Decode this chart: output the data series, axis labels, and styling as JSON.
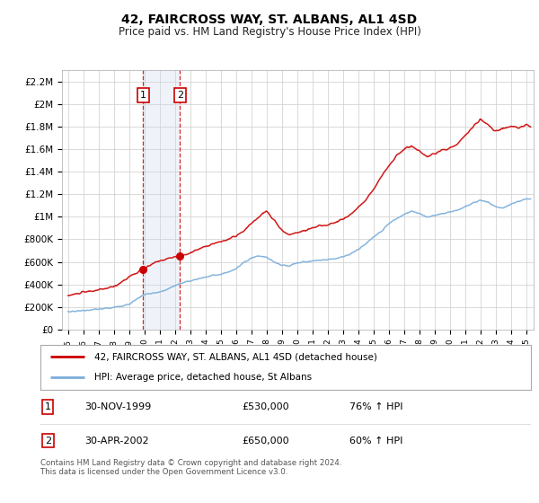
{
  "title": "42, FAIRCROSS WAY, ST. ALBANS, AL1 4SD",
  "subtitle": "Price paid vs. HM Land Registry's House Price Index (HPI)",
  "legend_line1": "42, FAIRCROSS WAY, ST. ALBANS, AL1 4SD (detached house)",
  "legend_line2": "HPI: Average price, detached house, St Albans",
  "red_color": "#cc0000",
  "blue_color": "#7aadda",
  "transaction1_date": 1999.917,
  "transaction1_price": 530000,
  "transaction2_date": 2002.33,
  "transaction2_price": 650000,
  "ylim": [
    0,
    2300000
  ],
  "xlim_start": 1994.6,
  "xlim_end": 2025.5,
  "yticks": [
    0,
    200000,
    400000,
    600000,
    800000,
    1000000,
    1200000,
    1400000,
    1600000,
    1800000,
    2000000,
    2200000
  ],
  "ylabels": [
    "£0",
    "£200K",
    "£400K",
    "£600K",
    "£800K",
    "£1M",
    "£1.2M",
    "£1.4M",
    "£1.6M",
    "£1.8M",
    "£2M",
    "£2.2M"
  ],
  "footer": "Contains HM Land Registry data © Crown copyright and database right 2024.\nThis data is licensed under the Open Government Licence v3.0.",
  "background_color": "#ffffff",
  "grid_color": "#cccccc",
  "shade_color": "#ccd9ee"
}
